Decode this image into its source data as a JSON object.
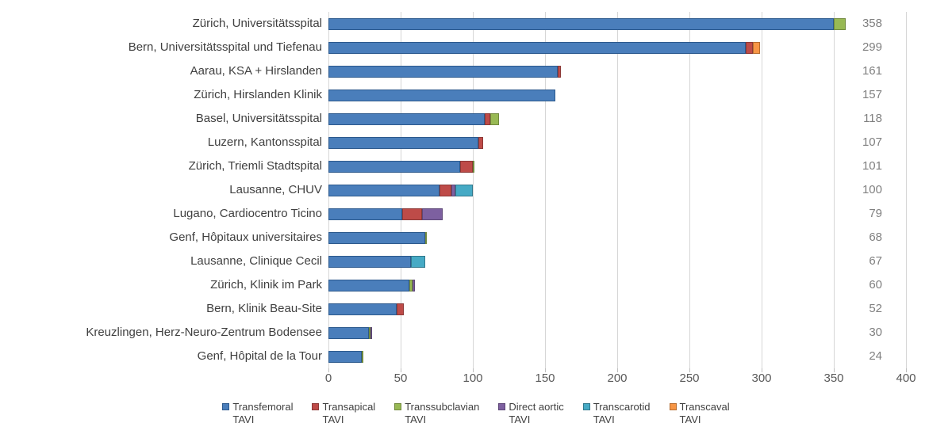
{
  "chart_data": {
    "type": "bar",
    "orientation": "horizontal-stacked",
    "categories": [
      "Zürich, Universitätsspital",
      "Bern, Universitätsspital und Tiefenau",
      "Aarau, KSA + Hirslanden",
      "Zürich, Hirslanden Klinik",
      "Basel, Universitätsspital",
      "Luzern, Kantonsspital",
      "Zürich, Triemli Stadtspital",
      "Lausanne, CHUV",
      "Lugano, Cardiocentro Ticino",
      "Genf, Hôpitaux universitaires",
      "Lausanne, Clinique Cecil",
      "Zürich, Klinik im Park",
      "Bern, Klinik Beau-Site",
      "Kreuzlingen, Herz-Neuro-Zentrum Bodensee",
      "Genf, Hôpital de la Tour"
    ],
    "totals": [
      358,
      299,
      161,
      157,
      118,
      107,
      101,
      100,
      79,
      68,
      67,
      60,
      52,
      30,
      24
    ],
    "series": [
      {
        "name": "Transfemoral TAVI",
        "legend_label": "Transfemoral\nTAVI",
        "color": "#4a7ebb",
        "border": "#2c598d",
        "values": [
          350,
          289,
          159,
          157,
          108,
          104,
          91,
          77,
          51,
          67,
          57,
          56,
          47,
          28,
          23
        ]
      },
      {
        "name": "Transapical TAVI",
        "legend_label": "Transapical\nTAVI",
        "color": "#be4b48",
        "border": "#8c3836",
        "values": [
          0,
          5,
          2,
          0,
          4,
          3,
          9,
          8,
          14,
          0,
          0,
          0,
          5,
          0,
          0
        ]
      },
      {
        "name": "Transsubclavian TAVI",
        "legend_label": "Transsubclavian\nTAVI",
        "color": "#98b954",
        "border": "#71893e",
        "values": [
          8,
          0,
          0,
          0,
          6,
          0,
          1,
          0,
          0,
          1,
          0,
          2,
          0,
          1,
          1
        ]
      },
      {
        "name": "Direct aortic TAVI",
        "legend_label": "Direct aortic\nTAVI",
        "color": "#7d60a0",
        "border": "#5d4777",
        "values": [
          0,
          0,
          0,
          0,
          0,
          0,
          0,
          3,
          14,
          0,
          0,
          2,
          0,
          1,
          0
        ]
      },
      {
        "name": "Transcarotid TAVI",
        "legend_label": "Transcarotid\nTAVI",
        "color": "#46aac5",
        "border": "#31788c",
        "values": [
          0,
          0,
          0,
          0,
          0,
          0,
          0,
          12,
          0,
          0,
          10,
          0,
          0,
          0,
          0
        ]
      },
      {
        "name": "Transcaval TAVI",
        "legend_label": "Transcaval\nTAVI",
        "color": "#f79646",
        "border": "#b66d31",
        "values": [
          0,
          5,
          0,
          0,
          0,
          0,
          0,
          0,
          0,
          0,
          0,
          0,
          0,
          0,
          0
        ]
      }
    ],
    "xlabel": "",
    "ylabel": "",
    "xlim": [
      0,
      400
    ],
    "xticks": [
      0,
      50,
      100,
      150,
      200,
      250,
      300,
      350,
      400
    ],
    "grid": "vertical",
    "legend_position": "bottom-center",
    "value_labels_position": "right"
  }
}
